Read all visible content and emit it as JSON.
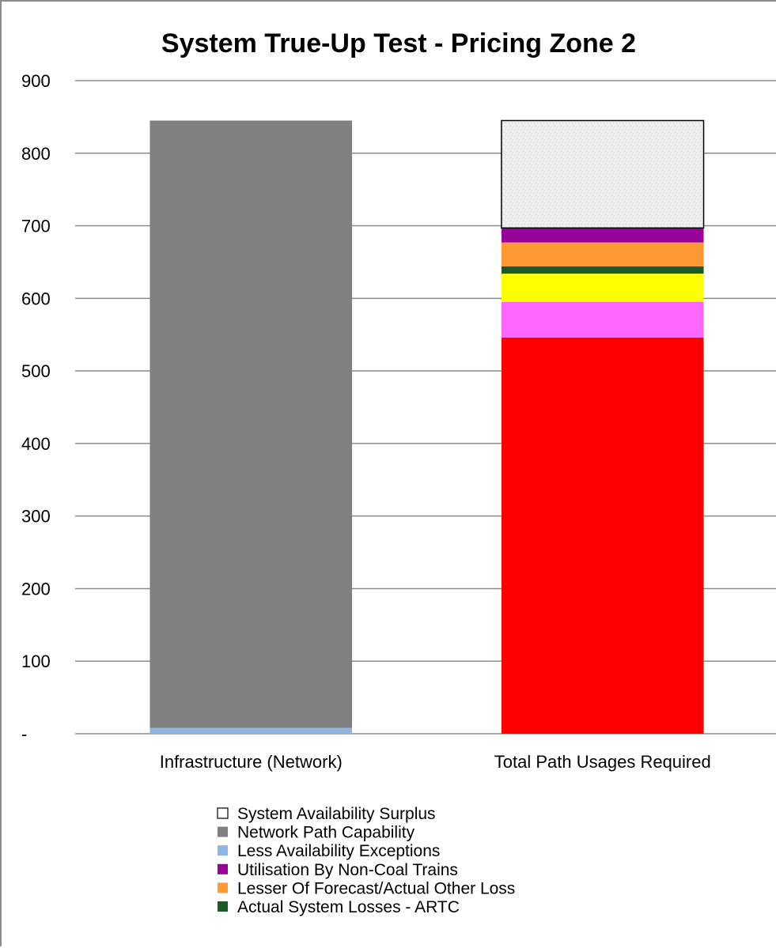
{
  "chart_data": {
    "type": "bar",
    "stacked": true,
    "title": "System True-Up Test - Pricing Zone 2",
    "ylim": [
      0,
      900
    ],
    "yticks": [
      0,
      100,
      200,
      300,
      400,
      500,
      600,
      700,
      800,
      900
    ],
    "ytick_labels": [
      "-",
      "100",
      "200",
      "300",
      "400",
      "500",
      "600",
      "700",
      "800",
      "900"
    ],
    "grid": true,
    "legend_position": "bottom",
    "categories": [
      "Infrastructure (Network)",
      "Total Path Usages Required"
    ],
    "series": [
      {
        "name": "Less Availability Exceptions",
        "color": "#8db4e2",
        "values": [
          8,
          0
        ]
      },
      {
        "name": "Network Path Capability",
        "color": "#808080",
        "values": [
          837,
          0
        ]
      },
      {
        "name": "",
        "color": "#ff0000",
        "values": [
          0,
          546
        ]
      },
      {
        "name": "",
        "color": "#ff66ff",
        "values": [
          0,
          49
        ]
      },
      {
        "name": "",
        "color": "#ffff00",
        "values": [
          0,
          39
        ]
      },
      {
        "name": "Actual System Losses - ARTC",
        "color": "#1d5a25",
        "values": [
          0,
          10
        ]
      },
      {
        "name": "Lesser Of Forecast/Actual Other Loss",
        "color": "#ff9933",
        "values": [
          0,
          33
        ]
      },
      {
        "name": "Utilisation By Non-Coal Trains",
        "color": "#990099",
        "values": [
          0,
          20
        ]
      },
      {
        "name": "System Availability Surplus",
        "color": "#f0f0f0",
        "values": [
          0,
          148
        ]
      }
    ],
    "legend": [
      {
        "label": "System Availability Surplus",
        "color": "#ffffff"
      },
      {
        "label": "Network Path Capability",
        "color": "#808080"
      },
      {
        "label": "Less Availability Exceptions",
        "color": "#8db4e2"
      },
      {
        "label": "Utilisation By Non-Coal Trains",
        "color": "#990099"
      },
      {
        "label": "Lesser Of Forecast/Actual Other Loss",
        "color": "#ff9933"
      },
      {
        "label": "Actual System Losses - ARTC",
        "color": "#1d5a25"
      }
    ]
  }
}
